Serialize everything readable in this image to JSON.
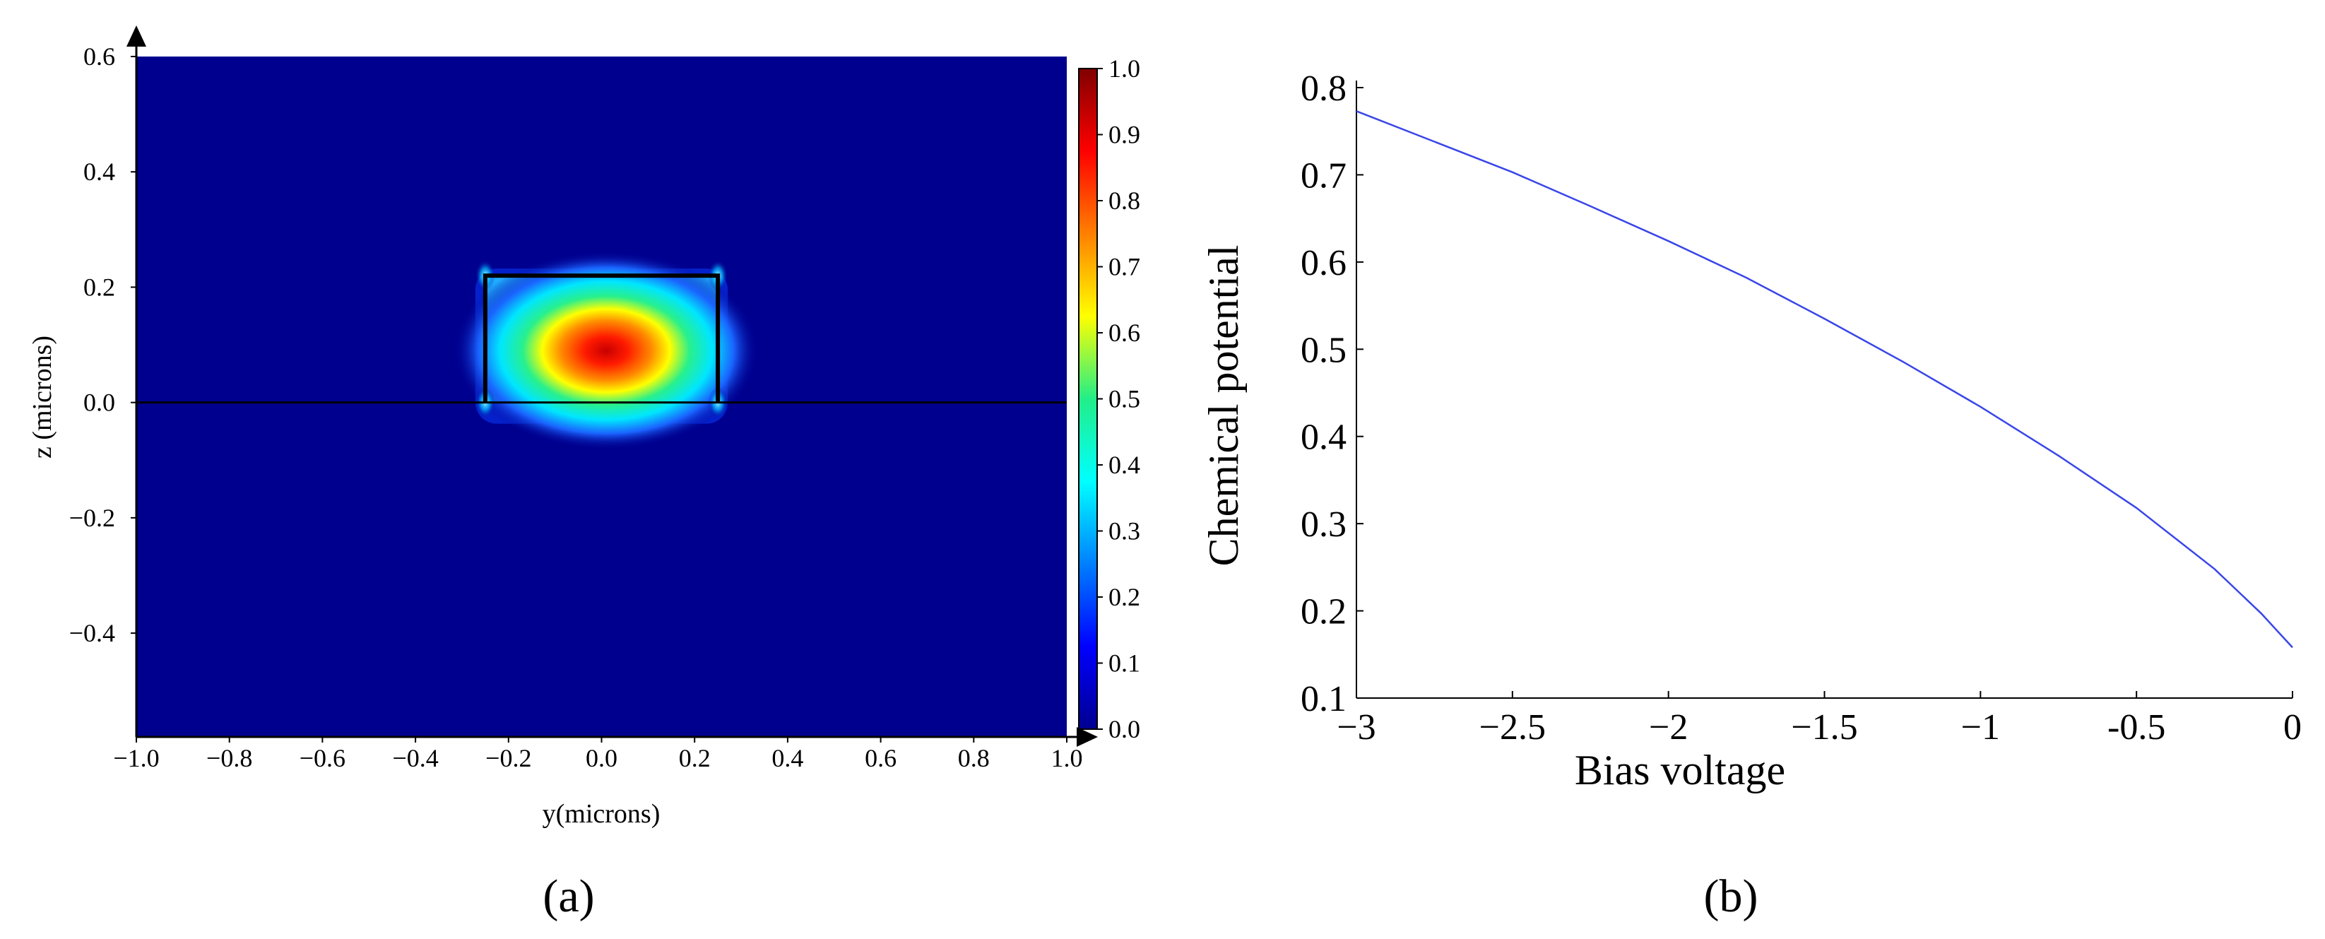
{
  "panel_a": {
    "caption": "(a)",
    "chart_data": {
      "type": "heatmap",
      "title": "",
      "xlabel": "y(microns)",
      "ylabel": "z (microns)",
      "xlim": [
        -1.0,
        1.0
      ],
      "ylim": [
        -0.58,
        0.6
      ],
      "x_ticks": [
        "−1.0",
        "−0.8",
        "−0.6",
        "−0.4",
        "−0.2",
        "0.0",
        "0.2",
        "0.4",
        "0.6",
        "0.8",
        "1.0"
      ],
      "x_tick_values": [
        -1.0,
        -0.8,
        -0.6,
        -0.4,
        -0.2,
        0.0,
        0.2,
        0.4,
        0.6,
        0.8,
        1.0
      ],
      "y_ticks": [
        "0.6",
        "0.4",
        "0.2",
        "0.0",
        "−0.2",
        "−0.4"
      ],
      "y_tick_values": [
        0.6,
        0.4,
        0.2,
        0.0,
        -0.2,
        -0.4
      ],
      "colorbar": {
        "range": [
          0.0,
          1.0
        ],
        "ticks": [
          "1.0",
          "0.9",
          "0.8",
          "0.7",
          "0.6",
          "0.5",
          "0.4",
          "0.3",
          "0.2",
          "0.1",
          "0.0"
        ],
        "tick_values": [
          1.0,
          0.9,
          0.8,
          0.7,
          0.6,
          0.5,
          0.4,
          0.3,
          0.2,
          0.1,
          0.0
        ],
        "colormap": "jet"
      },
      "waveguide": {
        "y_range": [
          -0.25,
          0.25
        ],
        "z_range": [
          0.0,
          0.22
        ]
      },
      "mode_peak": {
        "y": 0.01,
        "z": 0.09,
        "value": 1.0
      },
      "colors": {
        "background": "#00008f",
        "outline": "#000000"
      }
    }
  },
  "panel_b": {
    "caption": "(b)",
    "chart_data": {
      "type": "line",
      "title": "",
      "xlabel": "Bias voltage",
      "ylabel": "Chemical potential",
      "xlim": [
        -3,
        0
      ],
      "ylim": [
        0.1,
        0.8
      ],
      "x_ticks": [
        "−3",
        "−2.5",
        "−2",
        "−1.5",
        "−1",
        "-0.5",
        "0"
      ],
      "x_tick_values": [
        -3,
        -2.5,
        -2,
        -1.5,
        -1,
        -0.5,
        0
      ],
      "y_ticks": [
        "0.8",
        "0.7",
        "0.6",
        "0.5",
        "0.4",
        "0.3",
        "0.2",
        "0.1"
      ],
      "y_tick_values": [
        0.8,
        0.7,
        0.6,
        0.5,
        0.4,
        0.3,
        0.2,
        0.1
      ],
      "series": [
        {
          "color": "#3a46e8",
          "x": [
            -3.0,
            -2.75,
            -2.5,
            -2.25,
            -2.0,
            -1.75,
            -1.5,
            -1.25,
            -1.0,
            -0.75,
            -0.5,
            -0.25,
            -0.1,
            0.0
          ],
          "y": [
            0.773,
            0.738,
            0.703,
            0.664,
            0.624,
            0.582,
            0.535,
            0.486,
            0.434,
            0.378,
            0.318,
            0.248,
            0.197,
            0.158
          ]
        }
      ]
    }
  }
}
